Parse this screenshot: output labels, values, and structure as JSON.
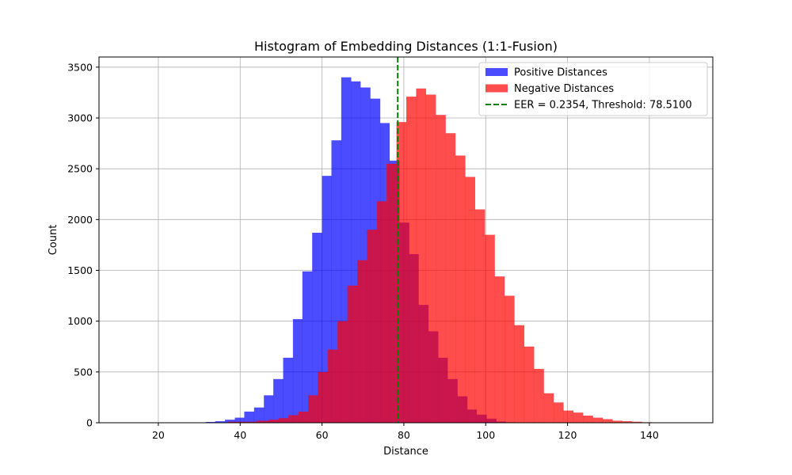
{
  "chart_data": {
    "type": "bar",
    "title": "Histogram of Embedding Distances (1:1-Fusion)",
    "xlabel": "Distance",
    "ylabel": "Count",
    "xlim": [
      5.5,
      155.5
    ],
    "ylim": [
      0,
      3600
    ],
    "xticks": [
      20,
      40,
      60,
      80,
      100,
      120,
      140
    ],
    "yticks": [
      0,
      500,
      1000,
      1500,
      2000,
      2500,
      3000,
      3500
    ],
    "grid": true,
    "legend_position": "top-right",
    "series": [
      {
        "name": "Positive Distances",
        "color": "#0000ff",
        "opacity": 0.7,
        "bin_edges": [
          29.2,
          31.6,
          33.9,
          36.3,
          38.7,
          41.0,
          43.4,
          45.8,
          48.1,
          50.5,
          52.9,
          55.2,
          57.6,
          60.0,
          62.3,
          64.7,
          67.1,
          69.4,
          71.8,
          74.2,
          76.5,
          78.9,
          81.3,
          83.6,
          86.0,
          88.4,
          90.7,
          93.1,
          95.5,
          97.8,
          100.2,
          102.6,
          104.9,
          107.3
        ],
        "counts": [
          3,
          8,
          15,
          30,
          50,
          110,
          150,
          270,
          430,
          640,
          1020,
          1490,
          1870,
          2430,
          2780,
          3400,
          3360,
          3300,
          3190,
          2950,
          2580,
          1970,
          1660,
          1160,
          900,
          640,
          430,
          260,
          130,
          80,
          40,
          12,
          5
        ]
      },
      {
        "name": "Negative Distances",
        "color": "#ff0000",
        "opacity": 0.7,
        "bin_edges": [
          11.0,
          37.0,
          44.0,
          47.0,
          49.4,
          51.8,
          54.2,
          56.6,
          59.0,
          61.4,
          63.8,
          66.2,
          68.6,
          71.0,
          73.4,
          75.8,
          78.2,
          80.6,
          83.0,
          85.4,
          87.8,
          90.2,
          92.6,
          95.0,
          97.4,
          99.8,
          102.2,
          104.6,
          107.0,
          109.4,
          111.8,
          114.2,
          116.6,
          119.0,
          121.4,
          123.8,
          126.2,
          128.6,
          131.0,
          133.4,
          135.8,
          138.2,
          140.6,
          143.0,
          145.0,
          150.0
        ],
        "counts": [
          2,
          10,
          20,
          30,
          45,
          75,
          110,
          270,
          500,
          720,
          1000,
          1350,
          1600,
          1900,
          2180,
          2550,
          2960,
          3210,
          3290,
          3230,
          3030,
          2850,
          2630,
          2420,
          2100,
          1850,
          1440,
          1250,
          960,
          750,
          530,
          290,
          200,
          120,
          100,
          70,
          50,
          35,
          20,
          15,
          10,
          5,
          3,
          1,
          0
        ]
      }
    ],
    "threshold_line": {
      "x": 78.51,
      "color": "#008000",
      "label": "EER = 0.2354, Threshold: 78.5100"
    }
  }
}
